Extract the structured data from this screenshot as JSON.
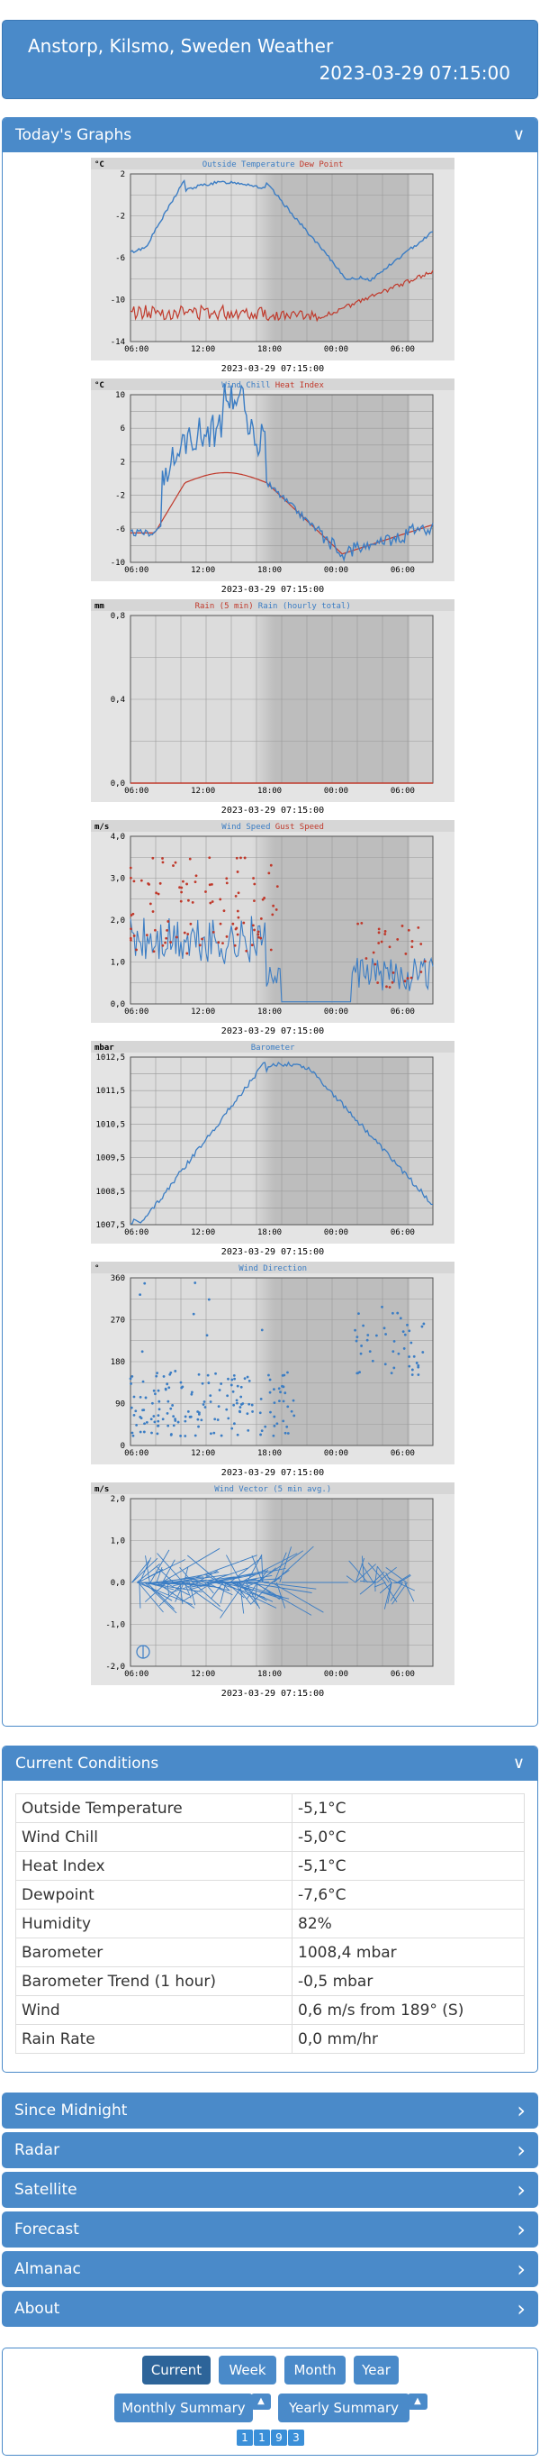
{
  "header": {
    "title": "Anstorp, Kilsmo, Sweden Weather",
    "datetime": "2023-03-29 07:15:00"
  },
  "graphs_panel": {
    "title": "Today's Graphs"
  },
  "graphs": [
    {
      "id": "temp",
      "unit": "°C",
      "series": [
        {
          "name": "Outside Temperature",
          "color": "#3b7dc4"
        },
        {
          "name": "Dew Point",
          "color": "#c0392b"
        }
      ],
      "yticks": [
        "2",
        "-2",
        "-6",
        "-10",
        "-14"
      ],
      "ymin": -14,
      "ymax": 2,
      "xticks": [
        "06:00",
        "12:00",
        "18:00",
        "00:00",
        "06:00"
      ],
      "caption": "2023-03-29 07:15:00"
    },
    {
      "id": "chill",
      "unit": "°C",
      "series": [
        {
          "name": "Wind Chill",
          "color": "#3b7dc4"
        },
        {
          "name": "Heat Index",
          "color": "#c0392b"
        }
      ],
      "yticks": [
        "10",
        "6",
        "2",
        "-2",
        "-6",
        "-10"
      ],
      "ymin": -10,
      "ymax": 10,
      "xticks": [
        "06:00",
        "12:00",
        "18:00",
        "00:00",
        "06:00"
      ],
      "caption": "2023-03-29 07:15:00"
    },
    {
      "id": "rain",
      "unit": "mm",
      "series": [
        {
          "name": "Rain (5 min)",
          "color": "#c0392b"
        },
        {
          "name": "Rain (hourly total)",
          "color": "#3b7dc4"
        }
      ],
      "yticks": [
        "0,8",
        "0,4",
        "0,0"
      ],
      "ymin": 0,
      "ymax": 1,
      "xticks": [
        "06:00",
        "12:00",
        "18:00",
        "00:00",
        "06:00"
      ],
      "caption": "2023-03-29 07:15:00"
    },
    {
      "id": "wind",
      "unit": "m/s",
      "series": [
        {
          "name": "Wind Speed",
          "color": "#3b7dc4"
        },
        {
          "name": "Gust Speed",
          "color": "#c0392b"
        }
      ],
      "yticks": [
        "4,0",
        "3,0",
        "2,0",
        "1,0",
        "0,0"
      ],
      "ymin": 0,
      "ymax": 4,
      "xticks": [
        "06:00",
        "12:00",
        "18:00",
        "00:00",
        "06:00"
      ],
      "caption": "2023-03-29 07:15:00"
    },
    {
      "id": "baro",
      "unit": "mbar",
      "series": [
        {
          "name": "Barometer",
          "color": "#3b7dc4"
        }
      ],
      "yticks": [
        "1012,5",
        "1011,5",
        "1010,5",
        "1009,5",
        "1008,5",
        "1007,5"
      ],
      "ymin": 1007.5,
      "ymax": 1012.5,
      "xticks": [
        "06:00",
        "12:00",
        "18:00",
        "00:00",
        "06:00"
      ],
      "caption": "2023-03-29 07:15:00"
    },
    {
      "id": "dir",
      "unit": "°",
      "series": [
        {
          "name": "Wind Direction",
          "color": "#3b7dc4"
        }
      ],
      "yticks": [
        "360",
        "270",
        "180",
        "90",
        "0"
      ],
      "ymin": 0,
      "ymax": 360,
      "xticks": [
        "06:00",
        "12:00",
        "18:00",
        "00:00",
        "06:00"
      ],
      "caption": "2023-03-29 07:15:00"
    },
    {
      "id": "vec",
      "unit": "m/s",
      "series": [
        {
          "name": "Wind Vector (5 min avg.)",
          "color": "#3b7dc4"
        }
      ],
      "yticks": [
        "2,0",
        "1,0",
        "0,0",
        "-1,0",
        "-2,0"
      ],
      "ymin": -2,
      "ymax": 2,
      "xticks": [
        "06:00",
        "12:00",
        "18:00",
        "00:00",
        "06:00"
      ],
      "caption": "2023-03-29 07:15:00"
    }
  ],
  "current": {
    "title": "Current Conditions",
    "rows": [
      {
        "label": "Outside Temperature",
        "value": "-5,1°C"
      },
      {
        "label": "Wind Chill",
        "value": "-5,0°C"
      },
      {
        "label": "Heat Index",
        "value": "-5,1°C"
      },
      {
        "label": "Dewpoint",
        "value": "-7,6°C"
      },
      {
        "label": "Humidity",
        "value": "82%"
      },
      {
        "label": "Barometer",
        "value": "1008,4 mbar"
      },
      {
        "label": "Barometer Trend (1 hour)",
        "value": "-0,5 mbar"
      },
      {
        "label": "Wind",
        "value": "0,6 m/s from 189° (S)"
      },
      {
        "label": "Rain Rate",
        "value": "0,0 mm/hr"
      }
    ]
  },
  "sections": [
    "Since Midnight",
    "Radar",
    "Satellite",
    "Forecast",
    "Almanac",
    "About"
  ],
  "footer": {
    "current": "Current",
    "week": "Week",
    "month": "Month",
    "year": "Year",
    "monthly": "Monthly Summary",
    "yearly": "Yearly Summary",
    "counter": [
      "1",
      "9",
      "3"
    ]
  }
}
